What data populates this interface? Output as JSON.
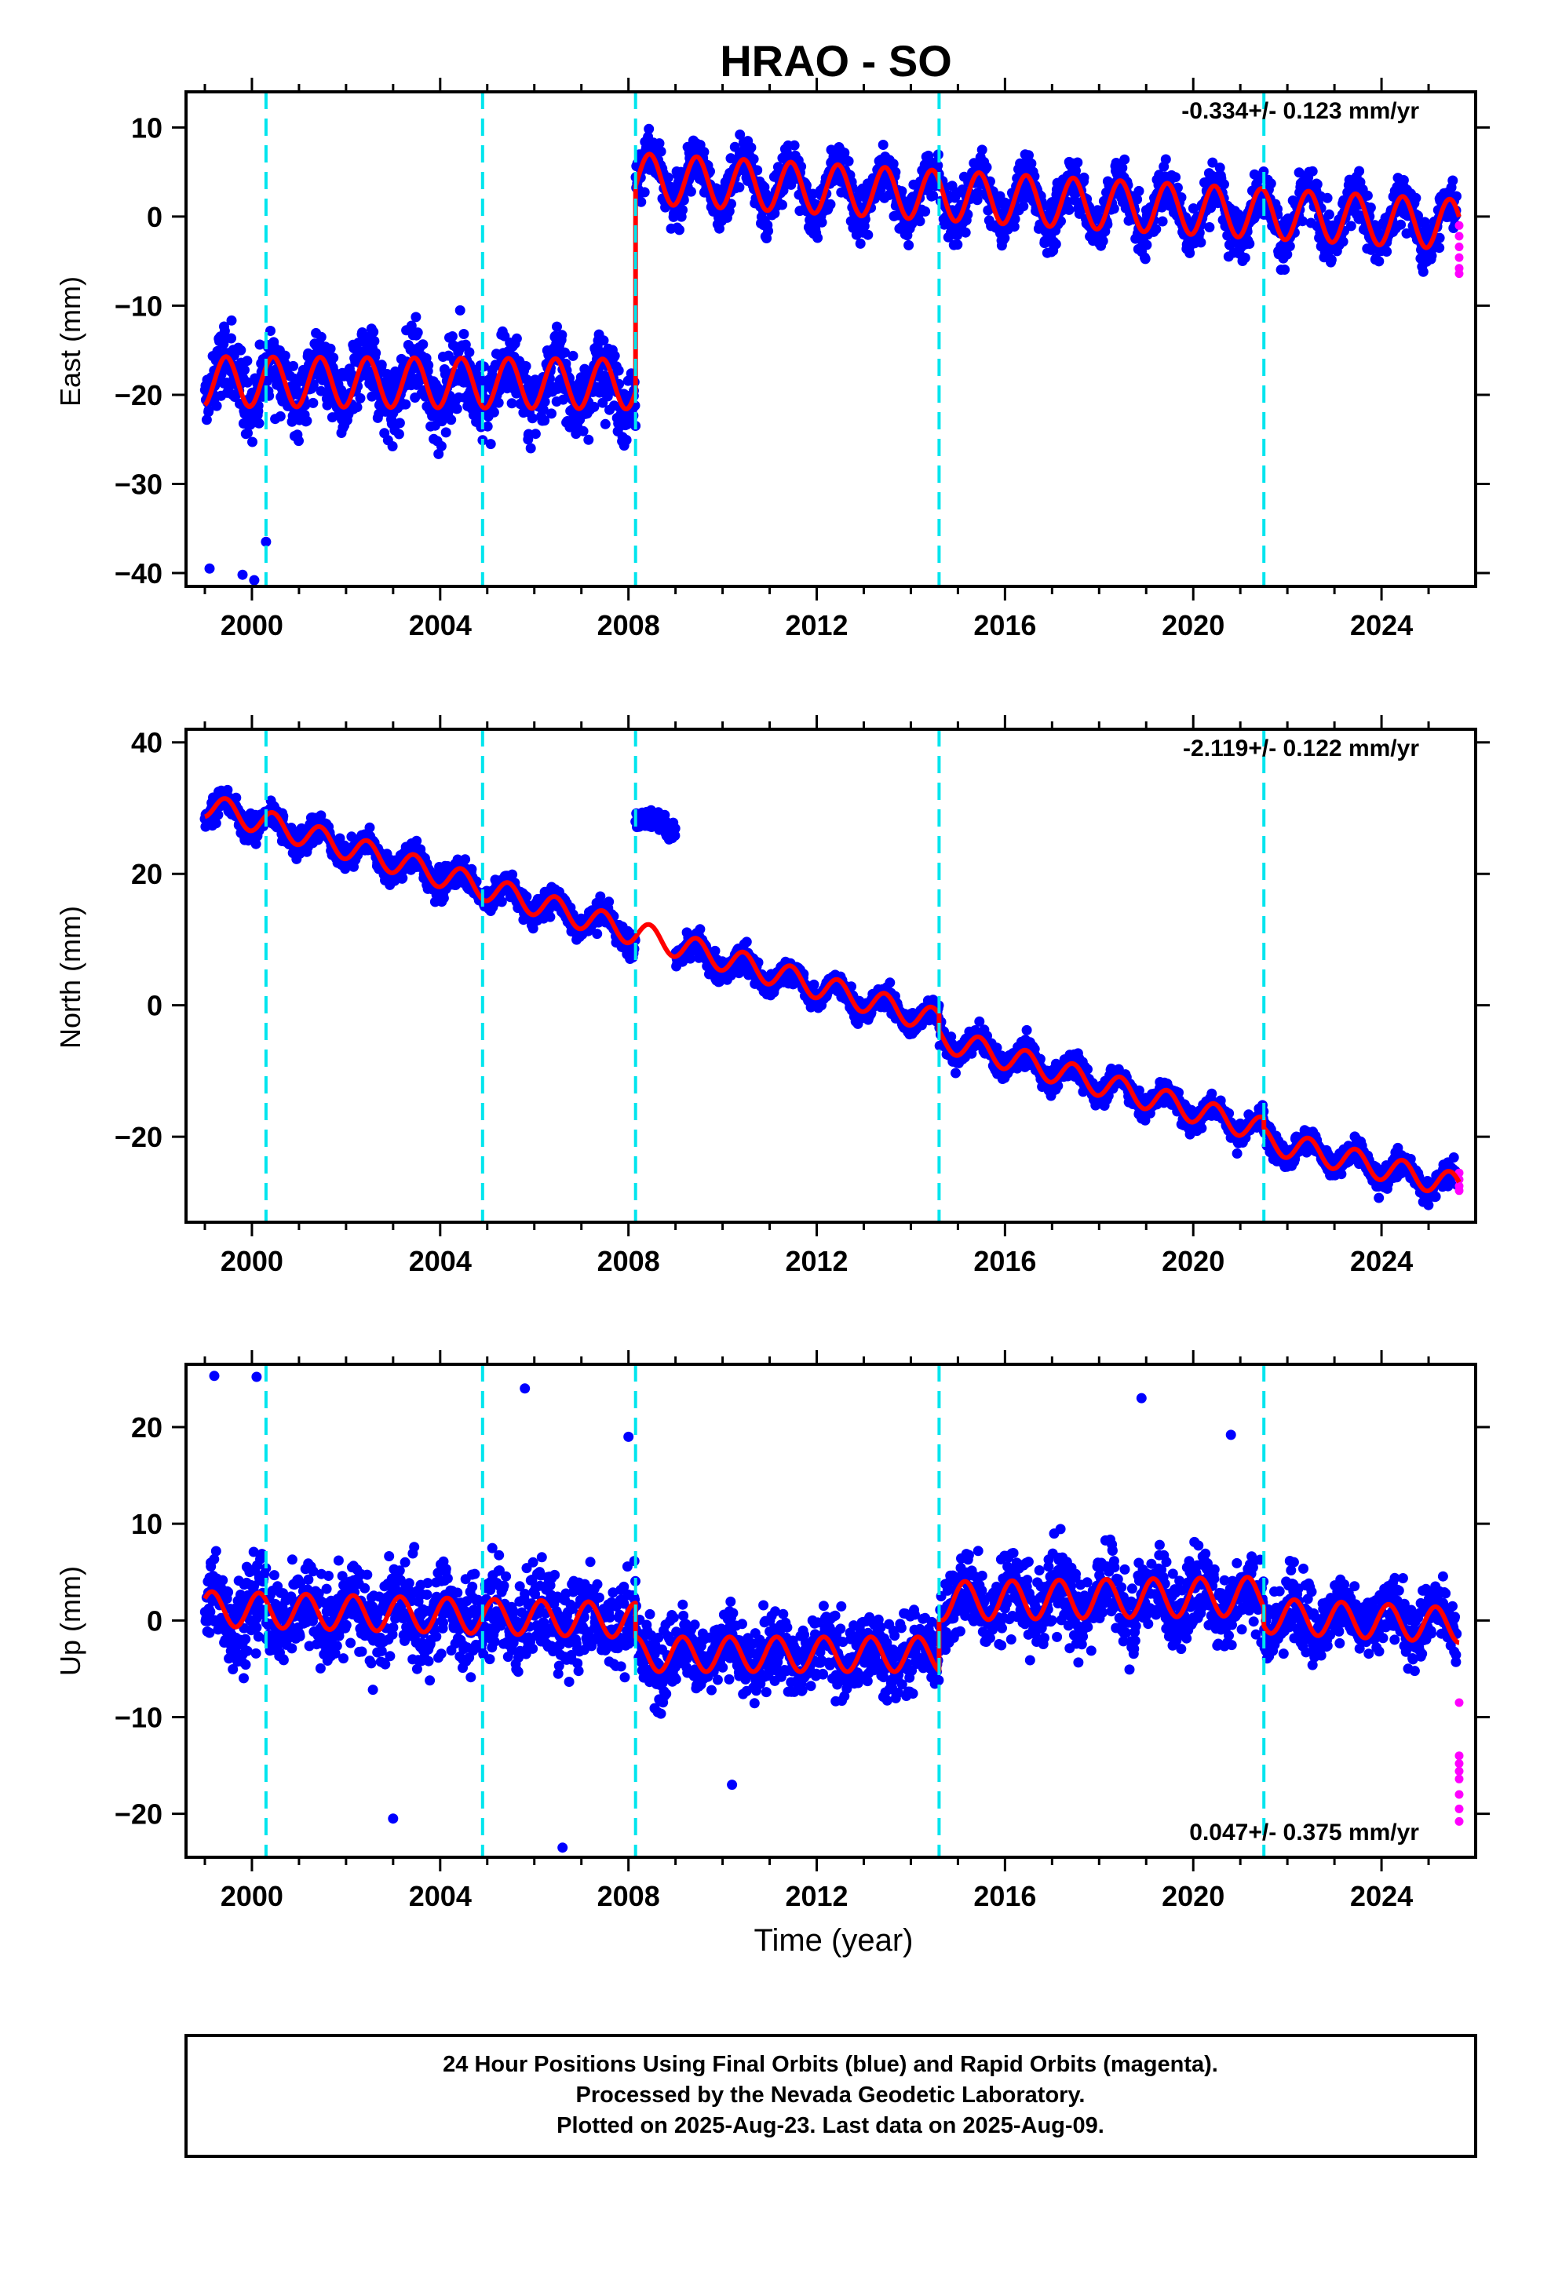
{
  "chart_data": [
    {
      "type": "scatter",
      "title": "HRAO - SO",
      "ylabel": "East (mm)",
      "xlabel": "",
      "xlim": [
        1998.6,
        2026.0
      ],
      "ylim": [
        -41.5,
        14.0
      ],
      "x_ticks": [
        2000,
        2004,
        2008,
        2012,
        2016,
        2020,
        2024
      ],
      "y_ticks": [
        10,
        0,
        -10,
        -20,
        -30,
        -40
      ],
      "rate_text": "-0.334+/- 0.123 mm/yr",
      "rate_position": "top-right",
      "reference_lines": [
        2000.3,
        2004.9,
        2008.15,
        2014.6,
        2021.5
      ],
      "series": [
        {
          "role": "final-orbits",
          "color": "#0000ff",
          "marker": "dot",
          "segments": [
            {
              "x_start": 1999.0,
              "x_end": 2008.15,
              "level_start": -18.5,
              "level_end": -18.8,
              "amplitude": 2.5,
              "phase": 0.2,
              "scatter": 5.5
            },
            {
              "x_start": 2008.15,
              "x_end": 2025.6,
              "level_start": 4.3,
              "level_end": -0.9,
              "amplitude": 2.8,
              "phase": 0.2,
              "scatter": 3.6
            }
          ],
          "outliers": [
            [
              1999.1,
              -39.5
            ],
            [
              1999.8,
              -40.2
            ],
            [
              2000.05,
              -40.8
            ],
            [
              2000.3,
              -36.5
            ]
          ]
        },
        {
          "role": "rapid-orbits",
          "color": "#ff00ff",
          "marker": "dot",
          "points": [
            [
              2025.65,
              -1.0
            ],
            [
              2025.65,
              -2.2
            ],
            [
              2025.65,
              -3.4
            ],
            [
              2025.65,
              -4.6
            ],
            [
              2025.65,
              -5.8
            ],
            [
              2025.65,
              -6.4
            ]
          ]
        },
        {
          "role": "model-fit",
          "color": "#ff0000",
          "line": "solid",
          "segments": [
            {
              "x_start": 1999.0,
              "x_end": 2008.15,
              "level_start": -18.5,
              "level_end": -18.8,
              "amplitude": 2.8,
              "phase": 0.2
            },
            {
              "x_start": 2008.15,
              "x_end": 2025.65,
              "level_start": 4.3,
              "level_end": -0.9,
              "amplitude": 2.8,
              "phase": 0.2
            }
          ]
        }
      ]
    },
    {
      "type": "scatter",
      "ylabel": "North (mm)",
      "xlabel": "",
      "xlim": [
        1998.6,
        2026.0
      ],
      "ylim": [
        -33.0,
        42.0
      ],
      "x_ticks": [
        2000,
        2004,
        2008,
        2012,
        2016,
        2020,
        2024
      ],
      "y_ticks": [
        40,
        20,
        0,
        -20
      ],
      "rate_text": "-2.119+/- 0.122 mm/yr",
      "rate_position": "top-right",
      "reference_lines": [
        2000.3,
        2004.9,
        2008.15,
        2014.6,
        2021.5
      ],
      "series": [
        {
          "role": "final-orbits",
          "color": "#0000ff",
          "marker": "dot",
          "segments": [
            {
              "x_start": 1999.0,
              "x_end": 2008.15,
              "level_start": 30.5,
              "level_end": 11.0,
              "amplitude": 1.8,
              "phase": 0.2,
              "scatter": 2.6
            },
            {
              "x_start": 2008.15,
              "x_end": 2009.0,
              "level_start": 28.5,
              "level_end": 27.0,
              "amplitude": 0.5,
              "phase": 0.2,
              "scatter": 1.8
            },
            {
              "x_start": 2009.0,
              "x_end": 2014.6,
              "level_start": 8.5,
              "level_end": -2.5,
              "amplitude": 1.8,
              "phase": 0.2,
              "scatter": 2.4
            },
            {
              "x_start": 2014.6,
              "x_end": 2021.5,
              "level_start": -5.0,
              "level_end": -19.0,
              "amplitude": 1.8,
              "phase": 0.2,
              "scatter": 2.4
            },
            {
              "x_start": 2021.5,
              "x_end": 2025.6,
              "level_start": -20.5,
              "level_end": -27.5,
              "amplitude": 1.8,
              "phase": 0.2,
              "scatter": 2.4
            }
          ]
        },
        {
          "role": "rapid-orbits",
          "color": "#ff00ff",
          "marker": "dot",
          "points": [
            [
              2025.65,
              -25.5
            ],
            [
              2025.65,
              -26.5
            ],
            [
              2025.65,
              -27.5
            ],
            [
              2025.65,
              -28.2
            ]
          ]
        },
        {
          "role": "model-fit",
          "color": "#ff0000",
          "line": "solid",
          "segments": [
            {
              "x_start": 1999.0,
              "x_end": 2008.15,
              "level_start": 30.5,
              "level_end": 11.0,
              "amplitude": 1.9,
              "phase": 0.2
            },
            {
              "x_start": 2008.15,
              "x_end": 2014.6,
              "level_start": 11.0,
              "level_end": -2.5,
              "amplitude": 1.9,
              "phase": 0.2
            },
            {
              "x_start": 2014.6,
              "x_end": 2021.5,
              "level_start": -5.0,
              "level_end": -19.0,
              "amplitude": 1.9,
              "phase": 0.2
            },
            {
              "x_start": 2021.5,
              "x_end": 2025.65,
              "level_start": -20.5,
              "level_end": -27.5,
              "amplitude": 1.9,
              "phase": 0.2
            }
          ]
        }
      ]
    },
    {
      "type": "scatter",
      "ylabel": "Up (mm)",
      "xlabel": "Time (year)",
      "xlim": [
        1998.6,
        2026.0
      ],
      "ylim": [
        -24.5,
        26.5
      ],
      "x_ticks": [
        2000,
        2004,
        2008,
        2012,
        2016,
        2020,
        2024
      ],
      "y_ticks": [
        20,
        10,
        0,
        -10,
        -20
      ],
      "rate_text": "0.047+/- 0.375 mm/yr",
      "rate_position": "bottom-right",
      "reference_lines": [
        2000.3,
        2004.9,
        2008.15,
        2014.6,
        2021.5
      ],
      "series": [
        {
          "role": "final-orbits",
          "color": "#0000ff",
          "marker": "dot",
          "segments": [
            {
              "x_start": 1999.0,
              "x_end": 2008.15,
              "level_start": 1.0,
              "level_end": 0.0,
              "amplitude": 1.4,
              "phase": 0.9,
              "scatter": 6.0
            },
            {
              "x_start": 2008.15,
              "x_end": 2014.6,
              "level_start": -3.5,
              "level_end": -3.5,
              "amplitude": 1.4,
              "phase": 0.9,
              "scatter": 5.0
            },
            {
              "x_start": 2014.6,
              "x_end": 2021.5,
              "level_start": 2.0,
              "level_end": 2.5,
              "amplitude": 1.8,
              "phase": 0.9,
              "scatter": 5.2
            },
            {
              "x_start": 2021.5,
              "x_end": 2025.6,
              "level_start": 0.5,
              "level_end": 0.0,
              "amplitude": 1.5,
              "phase": 0.9,
              "scatter": 4.5
            }
          ],
          "outliers": [
            [
              1999.2,
              25.3
            ],
            [
              2000.1,
              25.2
            ],
            [
              2005.8,
              24.0
            ],
            [
              2006.6,
              -23.5
            ],
            [
              2008.0,
              19.0
            ],
            [
              2018.9,
              23.0
            ],
            [
              2020.8,
              19.2
            ],
            [
              2003.0,
              -20.5
            ],
            [
              2010.2,
              -17.0
            ]
          ]
        },
        {
          "role": "rapid-orbits",
          "color": "#ff00ff",
          "marker": "dot",
          "points": [
            [
              2025.65,
              -8.5
            ],
            [
              2025.65,
              -14.0
            ],
            [
              2025.65,
              -14.8
            ],
            [
              2025.65,
              -15.6
            ],
            [
              2025.65,
              -16.4
            ],
            [
              2025.65,
              -18.0
            ],
            [
              2025.65,
              -19.5
            ],
            [
              2025.65,
              -20.8
            ]
          ]
        },
        {
          "role": "model-fit",
          "color": "#ff0000",
          "line": "solid",
          "segments": [
            {
              "x_start": 1999.0,
              "x_end": 2008.15,
              "level_start": 1.2,
              "level_end": 0.0,
              "amplitude": 1.8,
              "phase": 0.9
            },
            {
              "x_start": 2008.15,
              "x_end": 2014.6,
              "level_start": -3.5,
              "level_end": -3.5,
              "amplitude": 1.8,
              "phase": 0.9
            },
            {
              "x_start": 2014.6,
              "x_end": 2021.5,
              "level_start": 2.0,
              "level_end": 2.5,
              "amplitude": 2.0,
              "phase": 0.9
            },
            {
              "x_start": 2021.5,
              "x_end": 2025.65,
              "level_start": 0.5,
              "level_end": -0.5,
              "amplitude": 1.8,
              "phase": 0.9
            }
          ]
        }
      ]
    }
  ],
  "colors": {
    "final_orbits": "#0000ff",
    "rapid_orbits": "#ff00ff",
    "model_fit": "#ff0000",
    "reference_lines": "#00e5ee",
    "frame": "#000000"
  },
  "footer": {
    "line1": "24 Hour Positions Using Final Orbits (blue) and Rapid Orbits (magenta).",
    "line2": "Processed by the Nevada Geodetic Laboratory.",
    "line3": "Plotted on 2025-Aug-23. Last data on 2025-Aug-09."
  }
}
